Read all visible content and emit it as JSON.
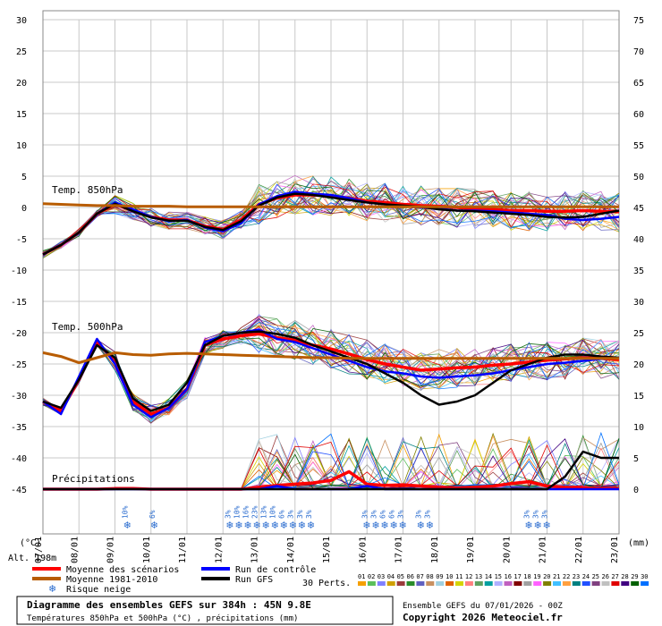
{
  "chart_data": {
    "type": "line",
    "ylabel_left": "(°C)",
    "ylabel_right": "(mm)",
    "altitude_label": "Alt. 198m",
    "y_left_ticks": [
      30,
      25,
      20,
      15,
      10,
      5,
      0,
      -5,
      -10,
      -15,
      -20,
      -25,
      -30,
      -35,
      -40,
      -45
    ],
    "y_right_ticks": [
      75,
      70,
      65,
      60,
      55,
      50,
      45,
      40,
      35,
      30,
      25,
      20,
      15,
      10,
      5,
      0
    ],
    "x_ticks": [
      "07/01",
      "08/01",
      "09/01",
      "10/01",
      "11/01",
      "12/01",
      "13/01",
      "14/01",
      "15/01",
      "16/01",
      "17/01",
      "18/01",
      "19/01",
      "20/01",
      "21/01",
      "22/01",
      "23/01"
    ],
    "sections": {
      "t850": "Temp. 850hPa",
      "t500": "Temp. 500hPa",
      "precip": "Précipitations"
    },
    "days": [
      0,
      0.5,
      1,
      1.5,
      2,
      2.5,
      3,
      3.5,
      4,
      4.5,
      5,
      5.5,
      6,
      6.5,
      7,
      7.5,
      8,
      8.5,
      9,
      9.5,
      10,
      10.5,
      11,
      11.5,
      12,
      12.5,
      13,
      13.5,
      14,
      14.5,
      15,
      15.5,
      16
    ],
    "series": [
      {
        "name": "Moyenne des scénarios",
        "group": "t850",
        "color": "#ff0000",
        "values": [
          -7.5,
          -6,
          -4,
          -1,
          0.5,
          -0.5,
          -1.5,
          -2,
          -2,
          -3,
          -3.5,
          -2,
          0.5,
          1.5,
          2,
          2,
          1.8,
          1.5,
          1,
          0.8,
          0.5,
          0.3,
          0.2,
          0,
          -0.2,
          -0.3,
          -0.5,
          -0.5,
          -0.6,
          -0.6,
          -0.5,
          -0.6,
          -0.7
        ]
      },
      {
        "name": "Run de contrôle",
        "group": "t850",
        "color": "#0000ff",
        "values": [
          -7.5,
          -6,
          -4,
          -1,
          0.8,
          -0.3,
          -1.5,
          -2.2,
          -2,
          -3.2,
          -3.8,
          -2.5,
          0.5,
          1.8,
          2.5,
          2.2,
          2,
          1.5,
          0.8,
          0.5,
          0.2,
          0,
          -0.2,
          -0.5,
          -0.5,
          -0.6,
          -0.8,
          -1,
          -1.2,
          -1.8,
          -2,
          -1.8,
          -1.5
        ]
      },
      {
        "name": "Run GFS",
        "group": "t850",
        "color": "#000000",
        "values": [
          -7.5,
          -6,
          -4,
          -1,
          0.6,
          -0.6,
          -1.6,
          -2.1,
          -2.1,
          -3.1,
          -3.6,
          -2.2,
          0.3,
          1.6,
          2.2,
          2,
          1.6,
          1.2,
          0.8,
          0.5,
          0.3,
          0.1,
          -0.3,
          -0.5,
          -0.6,
          -0.8,
          -1,
          -1.2,
          -1.5,
          -1.6,
          -1.5,
          -1,
          -0.5
        ]
      },
      {
        "name": "Moyenne 1981-2010",
        "group": "t850",
        "color": "#b85c00",
        "values": [
          0.6,
          0.5,
          0.4,
          0.3,
          0.3,
          0.2,
          0.2,
          0.2,
          0.1,
          0.1,
          0.1,
          0.1,
          0.1,
          0.1,
          0.1,
          0.1,
          0.1,
          0.1,
          0.1,
          0.1,
          0.1,
          0.1,
          0.1,
          0.1,
          0.1,
          0.1,
          0.1,
          0.1,
          0.1,
          0.1,
          0.1,
          0.1,
          0.1
        ]
      },
      {
        "name": "Moyenne des scénarios",
        "group": "t500",
        "color": "#ff0000",
        "values": [
          -31,
          -32.5,
          -27.5,
          -21.5,
          -24.5,
          -31,
          -33,
          -32,
          -29,
          -22,
          -21,
          -20.5,
          -20.2,
          -20.8,
          -21.2,
          -22,
          -22.6,
          -23.4,
          -24.3,
          -25,
          -25.5,
          -26,
          -25.8,
          -25.6,
          -25.5,
          -25.2,
          -25,
          -24.7,
          -24.4,
          -24.2,
          -24,
          -24.1,
          -24.3
        ]
      },
      {
        "name": "Run de contrôle",
        "group": "t500",
        "color": "#0000ff",
        "values": [
          -31,
          -33,
          -27,
          -21,
          -25,
          -31.5,
          -33.5,
          -32,
          -29,
          -21.5,
          -20.5,
          -20,
          -19.5,
          -21,
          -21.5,
          -22.5,
          -23.5,
          -24.5,
          -25.5,
          -26.2,
          -26.5,
          -27,
          -27.2,
          -27,
          -26.8,
          -26.5,
          -26,
          -25.5,
          -25,
          -24.8,
          -24.5,
          -24.2,
          -24
        ]
      },
      {
        "name": "Run GFS",
        "group": "t500",
        "color": "#000000",
        "values": [
          -31,
          -32,
          -27.5,
          -22,
          -24,
          -30.5,
          -32.5,
          -31.5,
          -28,
          -22,
          -20.5,
          -20,
          -19.8,
          -20.2,
          -20.8,
          -22,
          -23,
          -24,
          -25,
          -26.5,
          -28,
          -30,
          -31.5,
          -31,
          -30,
          -28,
          -26,
          -25,
          -24,
          -23.5,
          -23.5,
          -23.8,
          -24
        ]
      },
      {
        "name": "Moyenne 1981-2010",
        "group": "t500",
        "color": "#b85c00",
        "values": [
          -23.2,
          -23.8,
          -24.8,
          -24,
          -23.2,
          -23.5,
          -23.6,
          -23.4,
          -23.3,
          -23.4,
          -23.5,
          -23.6,
          -23.7,
          -23.8,
          -23.9,
          -24,
          -24,
          -24.1,
          -24.1,
          -24.1,
          -24.1,
          -24.1,
          -24.1,
          -24.1,
          -24.1,
          -24.1,
          -24.1,
          -24.1,
          -24.1,
          -24.1,
          -24.1,
          -24.1,
          -24.1
        ]
      },
      {
        "name": "Moyenne des scénarios",
        "group": "precip",
        "color": "#ff0000",
        "values": [
          0,
          0,
          0,
          0,
          0.1,
          0.1,
          0,
          0,
          0,
          0,
          0,
          0,
          0.3,
          0.6,
          0.8,
          1,
          1.4,
          2.8,
          0.8,
          0.6,
          0.7,
          0.5,
          0.3,
          0.2,
          0.3,
          0.5,
          0.9,
          1.2,
          0.5,
          0.3,
          0.2,
          0.1,
          0.1
        ]
      },
      {
        "name": "Run de contrôle",
        "group": "precip",
        "color": "#0000ff",
        "values": [
          0,
          0,
          0,
          0,
          0,
          0,
          0,
          0,
          0,
          0,
          0,
          0,
          0,
          0.5,
          0,
          0,
          0,
          0,
          0.5,
          0,
          0,
          0,
          0,
          0,
          0,
          0,
          0,
          0,
          0,
          0,
          0,
          0,
          0
        ]
      },
      {
        "name": "Run GFS",
        "group": "precip",
        "color": "#000000",
        "values": [
          0,
          0,
          0,
          0,
          0,
          0,
          0,
          0,
          0,
          0,
          0,
          0,
          0,
          0,
          0,
          0,
          0,
          0,
          0,
          0,
          0,
          0,
          0,
          0,
          0,
          0,
          0,
          0,
          0,
          2,
          6,
          5,
          5
        ]
      }
    ],
    "snow_risk": [
      {
        "day": 2.35,
        "label": "10%"
      },
      {
        "day": 3.1,
        "label": "6%"
      },
      {
        "day": 5.2,
        "label": "3%"
      },
      {
        "day": 5.45,
        "label": "10%"
      },
      {
        "day": 5.7,
        "label": "16%"
      },
      {
        "day": 5.95,
        "label": "23%"
      },
      {
        "day": 6.2,
        "label": "13%"
      },
      {
        "day": 6.45,
        "label": "10%"
      },
      {
        "day": 6.7,
        "label": "6%"
      },
      {
        "day": 6.95,
        "label": "3%"
      },
      {
        "day": 7.2,
        "label": "3%"
      },
      {
        "day": 7.45,
        "label": "3%"
      },
      {
        "day": 9.0,
        "label": "3%"
      },
      {
        "day": 9.25,
        "label": "3%"
      },
      {
        "day": 9.5,
        "label": "6%"
      },
      {
        "day": 9.75,
        "label": "6%"
      },
      {
        "day": 10.0,
        "label": "3%"
      },
      {
        "day": 10.5,
        "label": "3%"
      },
      {
        "day": 10.75,
        "label": "3%"
      },
      {
        "day": 13.5,
        "label": "3%"
      },
      {
        "day": 13.75,
        "label": "3%"
      },
      {
        "day": 14.0,
        "label": "3%"
      }
    ]
  },
  "legend": {
    "items": [
      {
        "label": "Moyenne des scénarios",
        "color": "#ff0000"
      },
      {
        "label": "Moyenne 1981-2010",
        "color": "#b85c00"
      },
      {
        "label": "Run de contrôle",
        "color": "#0000ff"
      },
      {
        "label": "Run GFS",
        "color": "#000000"
      }
    ],
    "snow_label": "Risque neige",
    "perts_label": "30 Perts.",
    "perts_numbers": [
      "01",
      "02",
      "03",
      "04",
      "05",
      "06",
      "07",
      "08",
      "09",
      "10",
      "11",
      "12",
      "13",
      "14",
      "15",
      "16",
      "17",
      "18",
      "19",
      "20",
      "21",
      "22",
      "23",
      "24",
      "25",
      "26",
      "27",
      "28",
      "29",
      "30"
    ],
    "perts_colors": [
      "#f5a000",
      "#5bbf5b",
      "#8080ff",
      "#d0a000",
      "#9b3b3b",
      "#2a8c2a",
      "#6060c0",
      "#c89060",
      "#a0d0e0",
      "#e06000",
      "#d4d400",
      "#ff8080",
      "#60a060",
      "#00a0a0",
      "#b0b0ff",
      "#c060c0",
      "#800000",
      "#a0a0a0",
      "#ff60ff",
      "#808000",
      "#40c0ff",
      "#ffa040",
      "#008080",
      "#2050ff",
      "#804080",
      "#c0c0c0",
      "#e00000",
      "#400080",
      "#006000",
      "#0070ff"
    ]
  },
  "footer": {
    "title": "Diagramme des ensembles GEFS sur 384h : 45N 9.8E",
    "subtitle": "Températures 850hPa et 500hPa (°C) , précipitations (mm)",
    "run_info": "Ensemble GEFS du 07/01/2026 - 00Z",
    "copyright": "Copyright 2026 Meteociel.fr"
  }
}
